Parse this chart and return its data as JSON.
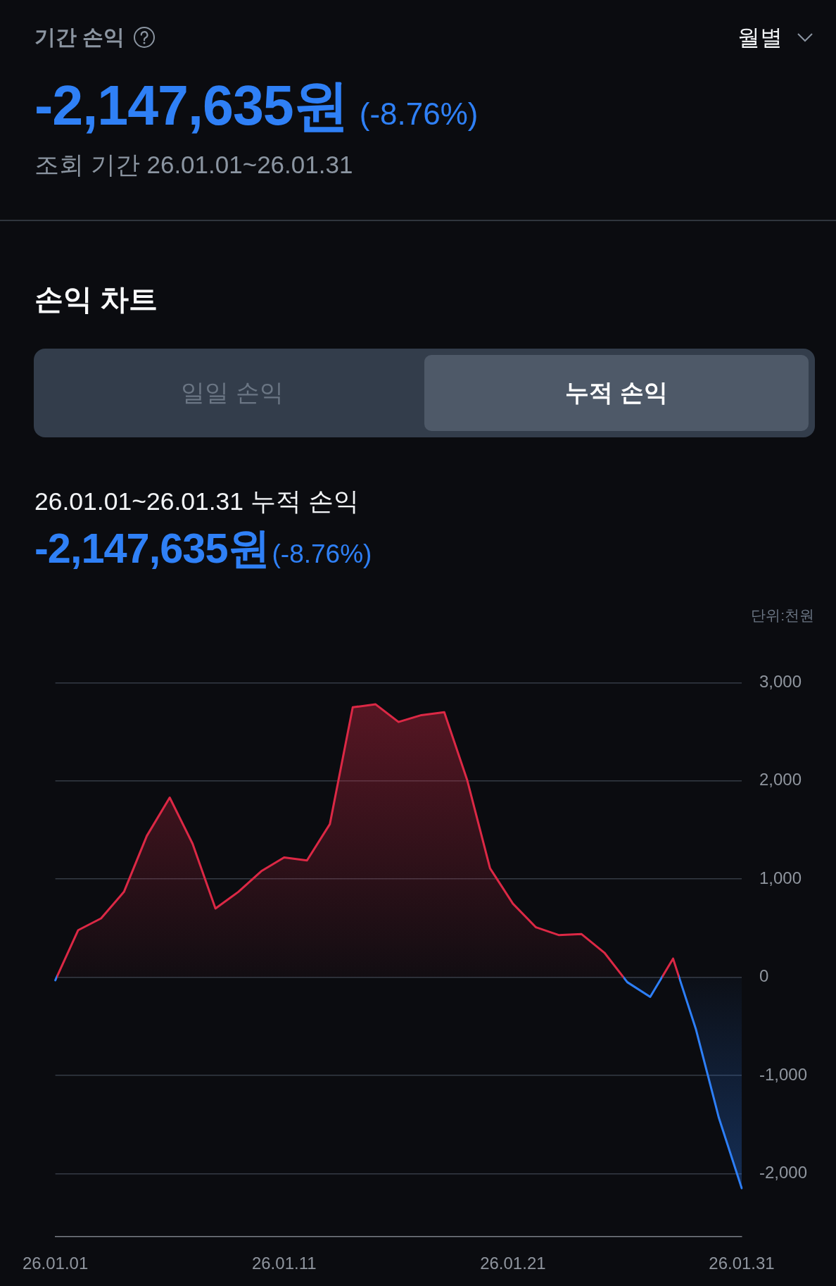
{
  "chart_data": {
    "type": "area",
    "title": "손익 차트",
    "subtitle": "26.01.01~26.01.31 누적 손익",
    "ylabel": "단위:천원",
    "annotations": [
      "기간 손익",
      "월별",
      "-2,147,635원",
      "(-8.76%)",
      "조회 기간 26.01.01~26.01.31",
      "일일 손익",
      "누적 손익",
      "-2,147,635원",
      "(-8.76%)"
    ],
    "categories": [
      "26.01.01",
      null,
      null,
      null,
      null,
      null,
      null,
      null,
      null,
      null,
      "26.01.11",
      null,
      null,
      null,
      null,
      null,
      null,
      null,
      null,
      null,
      "26.01.21",
      null,
      null,
      null,
      null,
      null,
      null,
      null,
      null,
      null,
      "26.01.31"
    ],
    "values": [
      -30,
      480,
      600,
      870,
      1440,
      1830,
      1360,
      700,
      870,
      1080,
      1220,
      1190,
      1560,
      2750,
      2780,
      2600,
      2670,
      2700,
      2010,
      1110,
      750,
      510,
      430,
      440,
      250,
      -50,
      -200,
      190,
      -530,
      -1430,
      -2148
    ],
    "colors": [
      "#2d7ff9",
      "#dc2845",
      "#dc2845",
      "#dc2845",
      "#dc2845",
      "#dc2845",
      "#dc2845",
      "#dc2845",
      "#dc2845",
      "#dc2845",
      "#dc2845",
      "#dc2845",
      "#dc2845",
      "#dc2845",
      "#dc2845",
      "#dc2845",
      "#dc2845",
      "#dc2845",
      "#dc2845",
      "#dc2845",
      "#dc2845",
      "#dc2845",
      "#dc2845",
      "#dc2845",
      "#dc2845",
      "#2d7ff9",
      "#2d7ff9",
      "#dc2845",
      "#2d7ff9",
      "#2d7ff9",
      "#2d7ff9"
    ],
    "ylim": [
      -2640,
      3000
    ],
    "yticks": [
      {
        "value": 3000,
        "label": "3,000"
      },
      {
        "value": 2000,
        "label": "2,000"
      },
      {
        "value": 1000,
        "label": "1,000"
      },
      0,
      {
        "value": -1000,
        "label": "-1,000"
      },
      {
        "value": -2000,
        "label": "-2,000"
      }
    ],
    "grid": "y",
    "marker": "none"
  }
}
